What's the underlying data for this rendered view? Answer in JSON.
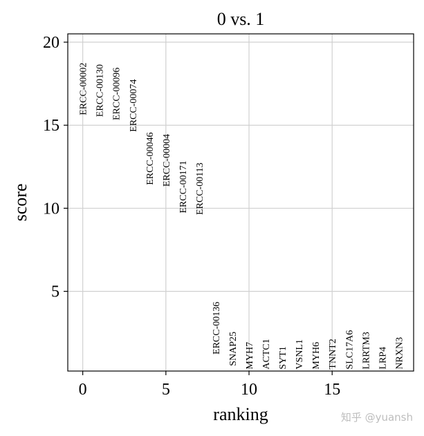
{
  "chart_data": {
    "type": "scatter",
    "title": "0 vs. 1",
    "xlabel": "ranking",
    "ylabel": "score",
    "xlim": [
      -0.9,
      19.9
    ],
    "ylim": [
      0.2,
      20.5
    ],
    "xticks": [
      0,
      5,
      10,
      15
    ],
    "yticks": [
      5,
      10,
      15,
      20
    ],
    "grid": true,
    "points": [
      {
        "x": 0,
        "y": 15.6,
        "label": "ERCC-00002"
      },
      {
        "x": 1,
        "y": 15.5,
        "label": "ERCC-00130"
      },
      {
        "x": 2,
        "y": 15.3,
        "label": "ERCC-00096"
      },
      {
        "x": 3,
        "y": 14.6,
        "label": "ERCC-00074"
      },
      {
        "x": 4,
        "y": 11.4,
        "label": "ERCC-00046"
      },
      {
        "x": 5,
        "y": 11.3,
        "label": "ERCC-00004"
      },
      {
        "x": 6,
        "y": 9.7,
        "label": "ERCC-00171"
      },
      {
        "x": 7,
        "y": 9.6,
        "label": "ERCC-00113"
      },
      {
        "x": 8,
        "y": 1.2,
        "label": "ERCC-00136"
      },
      {
        "x": 9,
        "y": 0.5,
        "label": "SNAP25"
      },
      {
        "x": 10,
        "y": 0.3,
        "label": "MYH7"
      },
      {
        "x": 11,
        "y": 0.3,
        "label": "ACTC1"
      },
      {
        "x": 12,
        "y": 0.3,
        "label": "SYT1"
      },
      {
        "x": 13,
        "y": 0.3,
        "label": "VSNL1"
      },
      {
        "x": 14,
        "y": 0.3,
        "label": "MYH6"
      },
      {
        "x": 15,
        "y": 0.3,
        "label": "TNNT2"
      },
      {
        "x": 16,
        "y": 0.3,
        "label": "SLC17A6"
      },
      {
        "x": 17,
        "y": 0.3,
        "label": "LRRTM3"
      },
      {
        "x": 18,
        "y": 0.3,
        "label": "LRP4"
      },
      {
        "x": 19,
        "y": 0.3,
        "label": "NRXN3"
      }
    ]
  },
  "watermark": "知乎 @yuansh"
}
